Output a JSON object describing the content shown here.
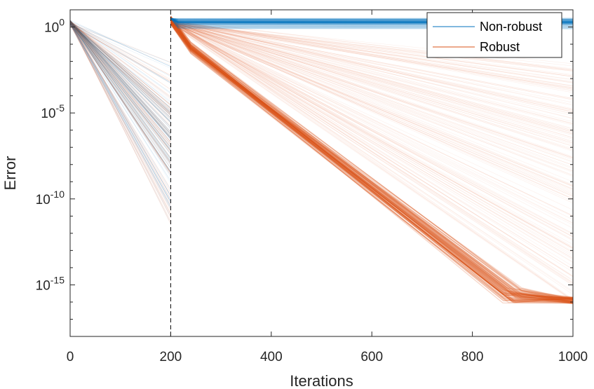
{
  "chart_data": {
    "type": "line",
    "xlabel": "Iterations",
    "ylabel": "Error",
    "xlim": [
      0,
      1000
    ],
    "ylim_log10": [
      -18,
      1
    ],
    "yscale": "log",
    "xticks": [
      {
        "value": 0,
        "label": "0"
      },
      {
        "value": 200,
        "label": "200"
      },
      {
        "value": 400,
        "label": "400"
      },
      {
        "value": 600,
        "label": "600"
      },
      {
        "value": 800,
        "label": "800"
      },
      {
        "value": 1000,
        "label": "1000"
      }
    ],
    "yticks": [
      {
        "exp": 0,
        "base": "10",
        "power": "0"
      },
      {
        "exp": -5,
        "base": "10",
        "power": "-5"
      },
      {
        "exp": -10,
        "base": "10",
        "power": "-10"
      },
      {
        "exp": -15,
        "base": "10",
        "power": "-15"
      }
    ],
    "vline": {
      "x": 200,
      "style": "dashed",
      "color": "#000000"
    },
    "legend": {
      "placement": "top-right"
    },
    "series": [
      {
        "name": "Non-robust",
        "color": "#0072BD",
        "description_points": [
          [
            0,
            0.3
          ],
          [
            200,
            -8.0
          ],
          [
            200,
            0.5
          ],
          [
            1000,
            0.4
          ]
        ]
      },
      {
        "name": "Robust",
        "color": "#D95319",
        "description_points": [
          [
            0,
            0.3
          ],
          [
            200,
            -7.0
          ],
          [
            200,
            0.3
          ],
          [
            880,
            -15.8
          ],
          [
            1000,
            -15.9
          ]
        ]
      }
    ],
    "grid": false
  }
}
